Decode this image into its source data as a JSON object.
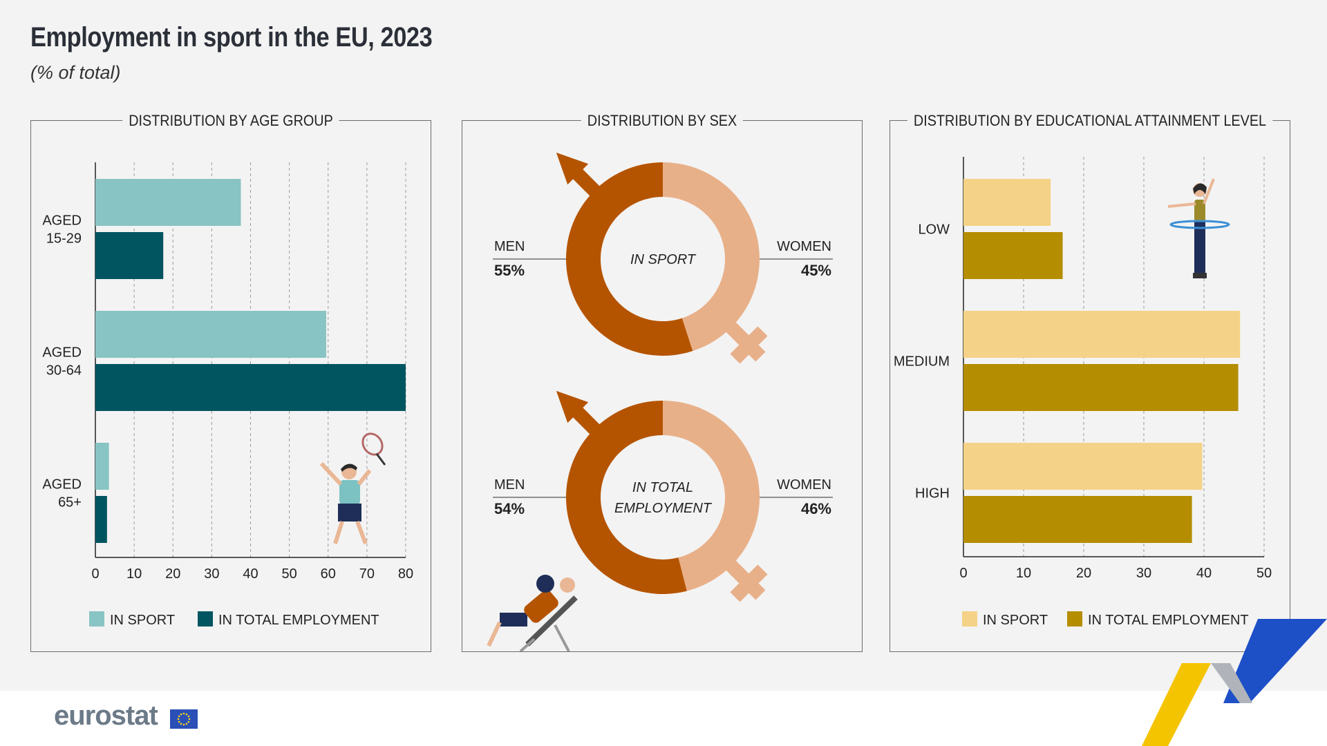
{
  "header": {
    "title": "Employment in sport in the EU, 2023",
    "subtitle": "(% of total)"
  },
  "legend": {
    "in_sport": "IN SPORT",
    "in_total": "IN TOTAL EMPLOYMENT"
  },
  "footer": {
    "logo": "eurostat"
  },
  "colors": {
    "age_sport": "#88c4c3",
    "age_total": "#005560",
    "edu_sport": "#f4d287",
    "edu_total": "#b58d00",
    "men": "#b55400",
    "women": "#e8b089"
  },
  "chart_data": [
    {
      "type": "bar",
      "orientation": "horizontal",
      "title": "DISTRIBUTION BY AGE GROUP",
      "categories": [
        "AGED 15-29",
        "AGED 30-64",
        "AGED 65+"
      ],
      "category_lines": [
        [
          "AGED",
          "15-29"
        ],
        [
          "AGED",
          "30-64"
        ],
        [
          "AGED",
          "65+"
        ]
      ],
      "series": [
        {
          "name": "IN SPORT",
          "values": [
            37.5,
            59.5,
            3.5
          ]
        },
        {
          "name": "IN TOTAL EMPLOYMENT",
          "values": [
            17.5,
            80,
            3
          ]
        }
      ],
      "xlim": [
        0,
        80
      ],
      "ticks": [
        0,
        10,
        20,
        30,
        40,
        50,
        60,
        70,
        80
      ],
      "grid": true,
      "legend_position": "bottom"
    },
    {
      "type": "pie",
      "variant": "donut",
      "title": "DISTRIBUTION BY SEX",
      "charts": [
        {
          "center_label": [
            "IN SPORT"
          ],
          "slices": [
            {
              "label": "MEN",
              "value": 55,
              "display": "55%"
            },
            {
              "label": "WOMEN",
              "value": 45,
              "display": "45%"
            }
          ]
        },
        {
          "center_label": [
            "IN TOTAL",
            "EMPLOYMENT"
          ],
          "slices": [
            {
              "label": "MEN",
              "value": 54,
              "display": "54%"
            },
            {
              "label": "WOMEN",
              "value": 46,
              "display": "46%"
            }
          ]
        }
      ]
    },
    {
      "type": "bar",
      "orientation": "horizontal",
      "title": "DISTRIBUTION BY EDUCATIONAL ATTAINMENT LEVEL",
      "categories": [
        "LOW",
        "MEDIUM",
        "HIGH"
      ],
      "category_lines": [
        [
          "LOW"
        ],
        [
          "MEDIUM"
        ],
        [
          "HIGH"
        ]
      ],
      "series": [
        {
          "name": "IN SPORT",
          "values": [
            14.5,
            46,
            39.7
          ]
        },
        {
          "name": "IN TOTAL EMPLOYMENT",
          "values": [
            16.5,
            45.7,
            38
          ]
        }
      ],
      "xlim": [
        0,
        50
      ],
      "ticks": [
        0,
        10,
        20,
        30,
        40,
        50
      ],
      "grid": true,
      "legend_position": "bottom"
    }
  ]
}
